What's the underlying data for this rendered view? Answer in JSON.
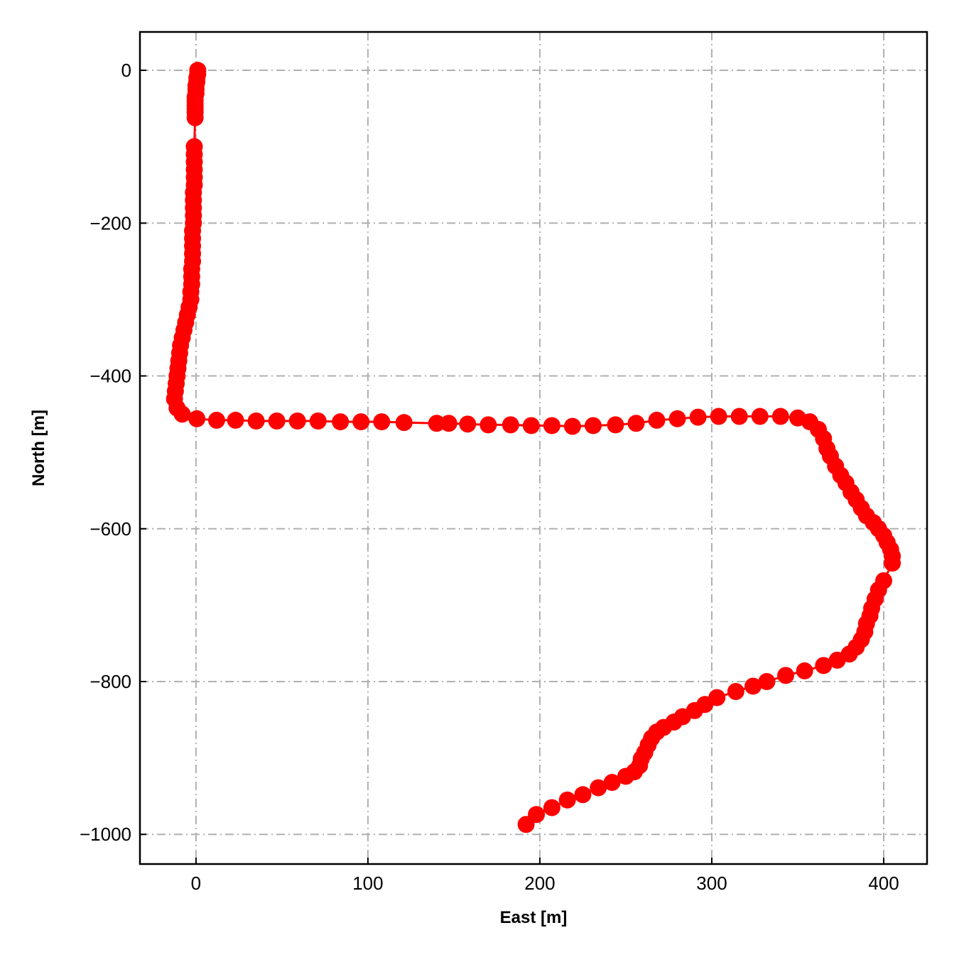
{
  "chart_data": {
    "type": "line",
    "xlabel": "East [m]",
    "ylabel": "North [m]",
    "x": [
      1,
      1,
      0.5,
      0.5,
      0,
      0,
      0,
      -0.5,
      -0.5,
      -0.5,
      -0.5,
      -0.5,
      -0.5,
      -1,
      -1,
      -1,
      -1,
      -1,
      -1,
      -1.5,
      -1.5,
      -1.5,
      -1.5,
      -1.5,
      -2,
      -2,
      -2,
      -2,
      -2,
      -2.5,
      -2.5,
      -2.5,
      -3,
      -3,
      -4,
      -5,
      -6,
      -7,
      -8,
      -9,
      -9.5,
      -10,
      -10.5,
      -11,
      -11.5,
      -12,
      -12.5,
      -11,
      -8,
      0.5,
      12,
      23,
      35,
      47,
      59,
      71,
      84,
      96,
      108,
      121,
      140,
      147,
      158,
      170,
      183,
      195,
      207,
      219,
      231,
      244,
      256,
      268,
      280,
      292,
      304,
      316,
      328,
      340,
      350,
      357,
      362,
      365,
      367,
      369,
      372,
      375,
      378,
      381,
      384,
      387,
      390,
      394,
      397,
      400,
      402,
      404,
      405,
      405,
      400,
      397,
      395,
      393,
      392,
      390,
      389,
      387,
      384,
      380,
      373,
      365,
      354,
      343,
      332,
      324,
      314,
      303,
      296,
      290,
      283,
      278,
      272,
      268,
      265,
      263,
      261,
      259,
      258,
      255,
      250,
      242,
      234,
      225,
      216,
      207,
      198,
      192
    ],
    "values": [
      0,
      -5,
      -10,
      -15,
      -20,
      -25,
      -30,
      -35,
      -40,
      -45,
      -50,
      -55,
      -62,
      -100,
      -110,
      -120,
      -130,
      -140,
      -150,
      -160,
      -170,
      -180,
      -190,
      -200,
      -210,
      -220,
      -230,
      -240,
      -250,
      -260,
      -270,
      -280,
      -290,
      -300,
      -310,
      -320,
      -330,
      -340,
      -350,
      -360,
      -370,
      -380,
      -390,
      -400,
      -410,
      -420,
      -430,
      -442,
      -450,
      -456,
      -458,
      -458,
      -459,
      -459,
      -459,
      -459,
      -460,
      -460,
      -460,
      -461,
      -462,
      -462,
      -463,
      -464,
      -464,
      -465,
      -465,
      -466,
      -465,
      -464,
      -462,
      -458,
      -456,
      -454,
      -453,
      -453,
      -453,
      -453,
      -455,
      -460,
      -470,
      -482,
      -495,
      -505,
      -518,
      -530,
      -540,
      -552,
      -562,
      -573,
      -583,
      -592,
      -600,
      -609,
      -618,
      -627,
      -636,
      -645,
      -668,
      -680,
      -692,
      -704,
      -714,
      -724,
      -735,
      -745,
      -755,
      -764,
      -772,
      -779,
      -786,
      -792,
      -800,
      -806,
      -813,
      -821,
      -830,
      -838,
      -846,
      -853,
      -860,
      -866,
      -874,
      -883,
      -893,
      -901,
      -910,
      -918,
      -924,
      -932,
      -939,
      -948,
      -955,
      -965,
      -974,
      -987
    ],
    "color": "#ff0000",
    "xlim": [
      -32.6,
      425.2
    ],
    "ylim": [
      -1038.8,
      50.2
    ],
    "xticks": [
      0,
      100,
      200,
      300,
      400
    ],
    "yticks": [
      0,
      {
        "value": -200,
        "label": "−200"
      },
      {
        "value": -400,
        "label": "−400"
      },
      {
        "value": -600,
        "label": "−600"
      },
      {
        "value": -800,
        "label": "−800"
      },
      {
        "value": -1000,
        "label": "−1000"
      }
    ],
    "grid": true
  }
}
